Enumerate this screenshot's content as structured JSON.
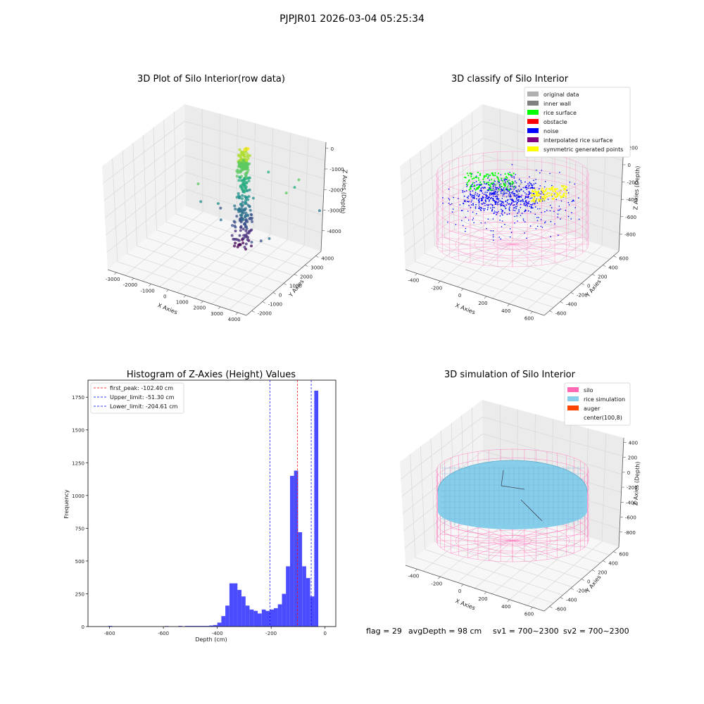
{
  "figure_title": "PJPJR01 2026-03-04 05:25:34",
  "footer": {
    "flag": "flag = 29",
    "avg_depth": "avgDepth = 98 cm",
    "sv1": "sv1 = 700~2300",
    "sv2": "sv2 = 700~2300"
  },
  "chart_data": [
    {
      "id": "raw3d",
      "type": "scatter",
      "title": "3D Plot of Silo Interior(row data)",
      "xlabel": "X Axies",
      "ylabel": "Y Axies",
      "zlabel": "Z Axies (Depth)",
      "x_ticks": [
        "-3000",
        "-2000",
        "-1000",
        "0",
        "1000",
        "2000",
        "3000",
        "4000"
      ],
      "y_ticks": [
        "-2000",
        "-1000",
        "0",
        "1000",
        "2000",
        "3000",
        "4000"
      ],
      "z_ticks": [
        "0",
        "-1000",
        "-2000",
        "-3000",
        "-4000"
      ],
      "colormap": "viridis",
      "x_range": [
        -3000,
        4000
      ],
      "y_range": [
        -2000,
        4000
      ],
      "z_range": [
        -4500,
        0
      ]
    },
    {
      "id": "classify3d",
      "type": "scatter",
      "title": "3D classify of Silo Interior",
      "xlabel": "X Axies",
      "ylabel": "Y Axies",
      "zlabel": "Z Axies (Depth)",
      "x_ticks": [
        "-400",
        "-200",
        "0",
        "200",
        "400",
        "600"
      ],
      "y_ticks": [
        "-600",
        "-400",
        "-200",
        "0",
        "200",
        "400",
        "600"
      ],
      "z_ticks": [
        "200",
        "0",
        "-200",
        "-400",
        "-600",
        "-800"
      ],
      "legend": [
        {
          "label": "original data",
          "color": "#b0b0b0"
        },
        {
          "label": "inner wall",
          "color": "#808080"
        },
        {
          "label": "rice surface",
          "color": "#00ff00"
        },
        {
          "label": "obstacle",
          "color": "#ff0000"
        },
        {
          "label": "noise",
          "color": "#0000ff"
        },
        {
          "label": "interpolated rice surface",
          "color": "#800080"
        },
        {
          "label": "symmetric generated points",
          "color": "#ffff00"
        }
      ]
    },
    {
      "id": "histogram",
      "type": "bar",
      "title": "Histogram of Z-Axies (Height) Values",
      "xlabel": "Depth (cm)",
      "ylabel": "Frequency",
      "xlim": [
        -880,
        40
      ],
      "ylim": [
        0,
        1880
      ],
      "x_ticks": [
        -800,
        -600,
        -400,
        -200,
        0
      ],
      "y_ticks": [
        0,
        250,
        500,
        750,
        1000,
        1250,
        1500,
        1750
      ],
      "bin_width": 15,
      "bin_starts": [
        -805,
        -595,
        -545,
        -520,
        -505,
        -490,
        -475,
        -460,
        -445,
        -430,
        -415,
        -400,
        -385,
        -370,
        -355,
        -340,
        -325,
        -310,
        -295,
        -280,
        -265,
        -250,
        -235,
        -220,
        -205,
        -190,
        -175,
        -160,
        -145,
        -130,
        -115,
        -100,
        -85,
        -70,
        -55,
        -40,
        -25,
        -10
      ],
      "values": [
        5,
        4,
        5,
        5,
        5,
        5,
        5,
        5,
        5,
        8,
        12,
        30,
        80,
        160,
        330,
        330,
        280,
        230,
        160,
        130,
        120,
        100,
        130,
        120,
        130,
        140,
        170,
        250,
        460,
        1150,
        1190,
        720,
        460,
        370,
        230,
        1800,
        0,
        0
      ],
      "lines": [
        {
          "label": "first_peak: -102.40 cm",
          "x": -102.4,
          "color": "#ff0000"
        },
        {
          "label": "Upper_limit: -51.30 cm",
          "x": -51.3,
          "color": "#0000ff"
        },
        {
          "label": "Lower_limit: -204.61 cm",
          "x": -204.61,
          "color": "#0000ff"
        }
      ]
    },
    {
      "id": "simulation3d",
      "type": "scatter",
      "title": "3D simulation of Silo Interior",
      "xlabel": "X Axies",
      "ylabel": "Y Axies",
      "zlabel": "Z Axies (Depth)",
      "x_ticks": [
        "-400",
        "-200",
        "0",
        "200",
        "400",
        "600"
      ],
      "y_ticks": [
        "-600",
        "-400",
        "-200",
        "0",
        "200",
        "400",
        "600"
      ],
      "z_ticks": [
        "400",
        "200",
        "0",
        "-200",
        "-400",
        "-600",
        "-800"
      ],
      "legend": [
        {
          "label": "silo",
          "color": "#ff69b4"
        },
        {
          "label": "rice simulation",
          "color": "#87ceeb"
        },
        {
          "label": "auger",
          "color": "#ff4500"
        },
        {
          "label": "center(100,8)",
          "color": "#ffffff"
        }
      ]
    }
  ]
}
